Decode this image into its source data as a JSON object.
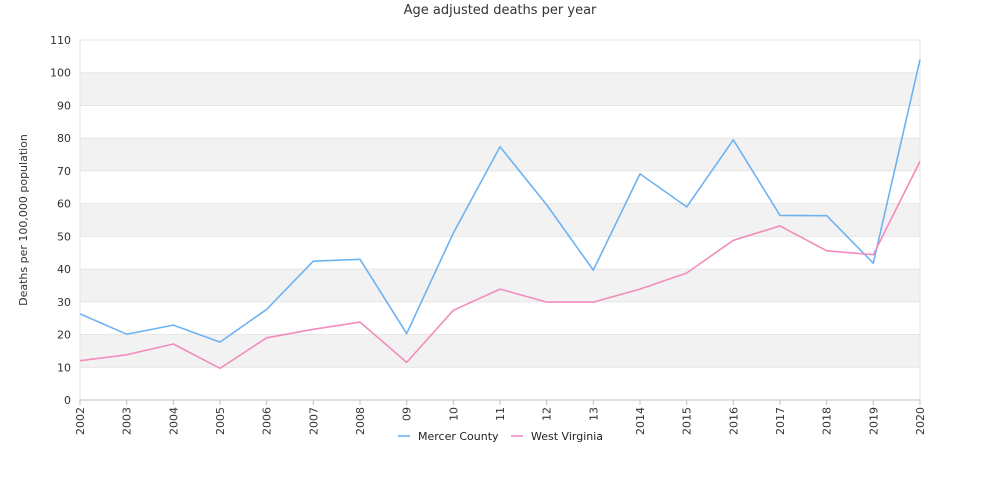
{
  "chart_data": {
    "type": "line",
    "title": "Age adjusted deaths per year",
    "xlabel": "",
    "ylabel": "Deaths per 100,000 population",
    "categories": [
      "2002",
      "2003",
      "2004",
      "2005",
      "2006",
      "2007",
      "2008",
      "09",
      "10",
      "11",
      "12",
      "13",
      "2014",
      "2015",
      "2016",
      "2017",
      "2018",
      "2019",
      "2020"
    ],
    "ylim": [
      0,
      110
    ],
    "yticks": [
      0,
      10,
      20,
      30,
      40,
      50,
      60,
      70,
      80,
      90,
      100,
      110
    ],
    "grid": "horizontal bands",
    "legend_position": "bottom",
    "series": [
      {
        "name": "Mercer County",
        "color": "#6db3f2",
        "values": [
          26.3,
          20.1,
          22.9,
          17.7,
          27.7,
          42.4,
          43.0,
          20.3,
          51.0,
          77.4,
          59.6,
          39.7,
          69.1,
          59.0,
          79.5,
          56.4,
          56.3,
          41.8,
          104.0
        ]
      },
      {
        "name": "West Virginia",
        "color": "#f28cbc",
        "values": [
          12.0,
          13.8,
          17.1,
          9.7,
          19.0,
          21.6,
          23.8,
          11.5,
          27.4,
          33.9,
          29.9,
          29.9,
          33.9,
          38.8,
          48.8,
          53.2,
          45.6,
          44.4,
          72.9
        ]
      }
    ],
    "band_colors": {
      "light": "#f2f2f2",
      "dark": "#ffffff",
      "grid": "#e6e6e6",
      "axis": "#c0c0c0",
      "text": "#333333"
    }
  }
}
